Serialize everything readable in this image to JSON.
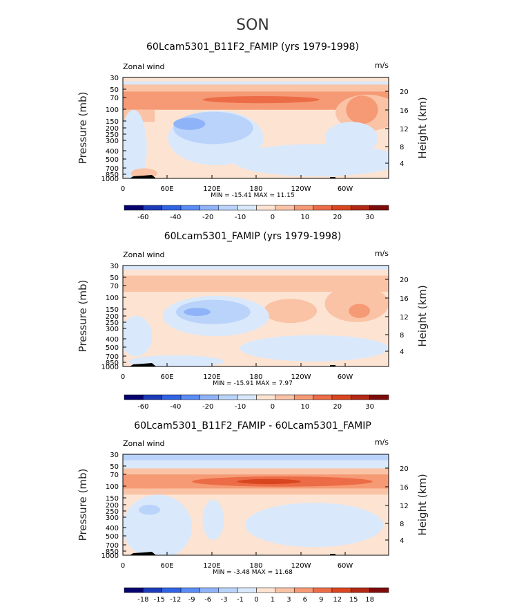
{
  "title": "SON",
  "colors": [
    "#06026e",
    "#1c3bb8",
    "#2f63e4",
    "#5b8cf5",
    "#8fb3f8",
    "#b9d3fa",
    "#d9e9fb",
    "#fde3d2",
    "#fac3a6",
    "#f59a74",
    "#ec6c47",
    "#d8451f",
    "#b22815",
    "#7e0b0b"
  ],
  "chart_data": [
    {
      "type": "heatmap",
      "title": "60Lcam5301_B11F2_FAMIP (yrs 1979-1998)",
      "field_label": "Zonal wind",
      "units": "m/s",
      "ylabel": "Pressure (mb)",
      "ylabel_right": "Height (km)",
      "x_ticks": [
        "0",
        "60E",
        "120E",
        "180",
        "120W",
        "60W"
      ],
      "y_ticks": [
        "30",
        "50",
        "70",
        "100",
        "150",
        "200",
        "250",
        "300",
        "400",
        "500",
        "700",
        "850",
        "1000"
      ],
      "y2_ticks": [
        "20",
        "16",
        "12",
        "8",
        "4"
      ],
      "stats": "MIN = -15.41   MAX =  11.15",
      "min": -15.41,
      "max": 11.15,
      "colorbar_labels": [
        "-60",
        "-40",
        "-20",
        "-10",
        "0",
        "10",
        "20",
        "30"
      ]
    },
    {
      "type": "heatmap",
      "title": "60Lcam5301_FAMIP (yrs 1979-1998)",
      "field_label": "Zonal wind",
      "units": "m/s",
      "ylabel": "Pressure (mb)",
      "ylabel_right": "Height (km)",
      "x_ticks": [
        "0",
        "60E",
        "120E",
        "180",
        "120W",
        "60W"
      ],
      "y_ticks": [
        "30",
        "50",
        "70",
        "100",
        "150",
        "200",
        "250",
        "300",
        "400",
        "500",
        "700",
        "850",
        "1000"
      ],
      "y2_ticks": [
        "20",
        "16",
        "12",
        "8",
        "4"
      ],
      "stats": "MIN = -15.91   MAX =   7.97",
      "min": -15.91,
      "max": 7.97,
      "colorbar_labels": [
        "-60",
        "-40",
        "-20",
        "-10",
        "0",
        "10",
        "20",
        "30"
      ]
    },
    {
      "type": "heatmap",
      "title": "60Lcam5301_B11F2_FAMIP - 60Lcam5301_FAMIP",
      "field_label": "Zonal wind",
      "units": "m/s",
      "ylabel": "Pressure (mb)",
      "ylabel_right": "Height (km)",
      "x_ticks": [
        "0",
        "60E",
        "120E",
        "180",
        "120W",
        "60W"
      ],
      "y_ticks": [
        "30",
        "50",
        "70",
        "100",
        "150",
        "200",
        "250",
        "300",
        "400",
        "500",
        "700",
        "850",
        "1000"
      ],
      "y2_ticks": [
        "20",
        "16",
        "12",
        "8",
        "4"
      ],
      "stats": "MIN =  -3.48   MAX =  11.68",
      "min": -3.48,
      "max": 11.68,
      "colorbar_labels": [
        "-18",
        "-15",
        "-12",
        "-9",
        "-6",
        "-3",
        "-1",
        "0",
        "1",
        "3",
        "6",
        "9",
        "12",
        "15",
        "18"
      ]
    }
  ]
}
